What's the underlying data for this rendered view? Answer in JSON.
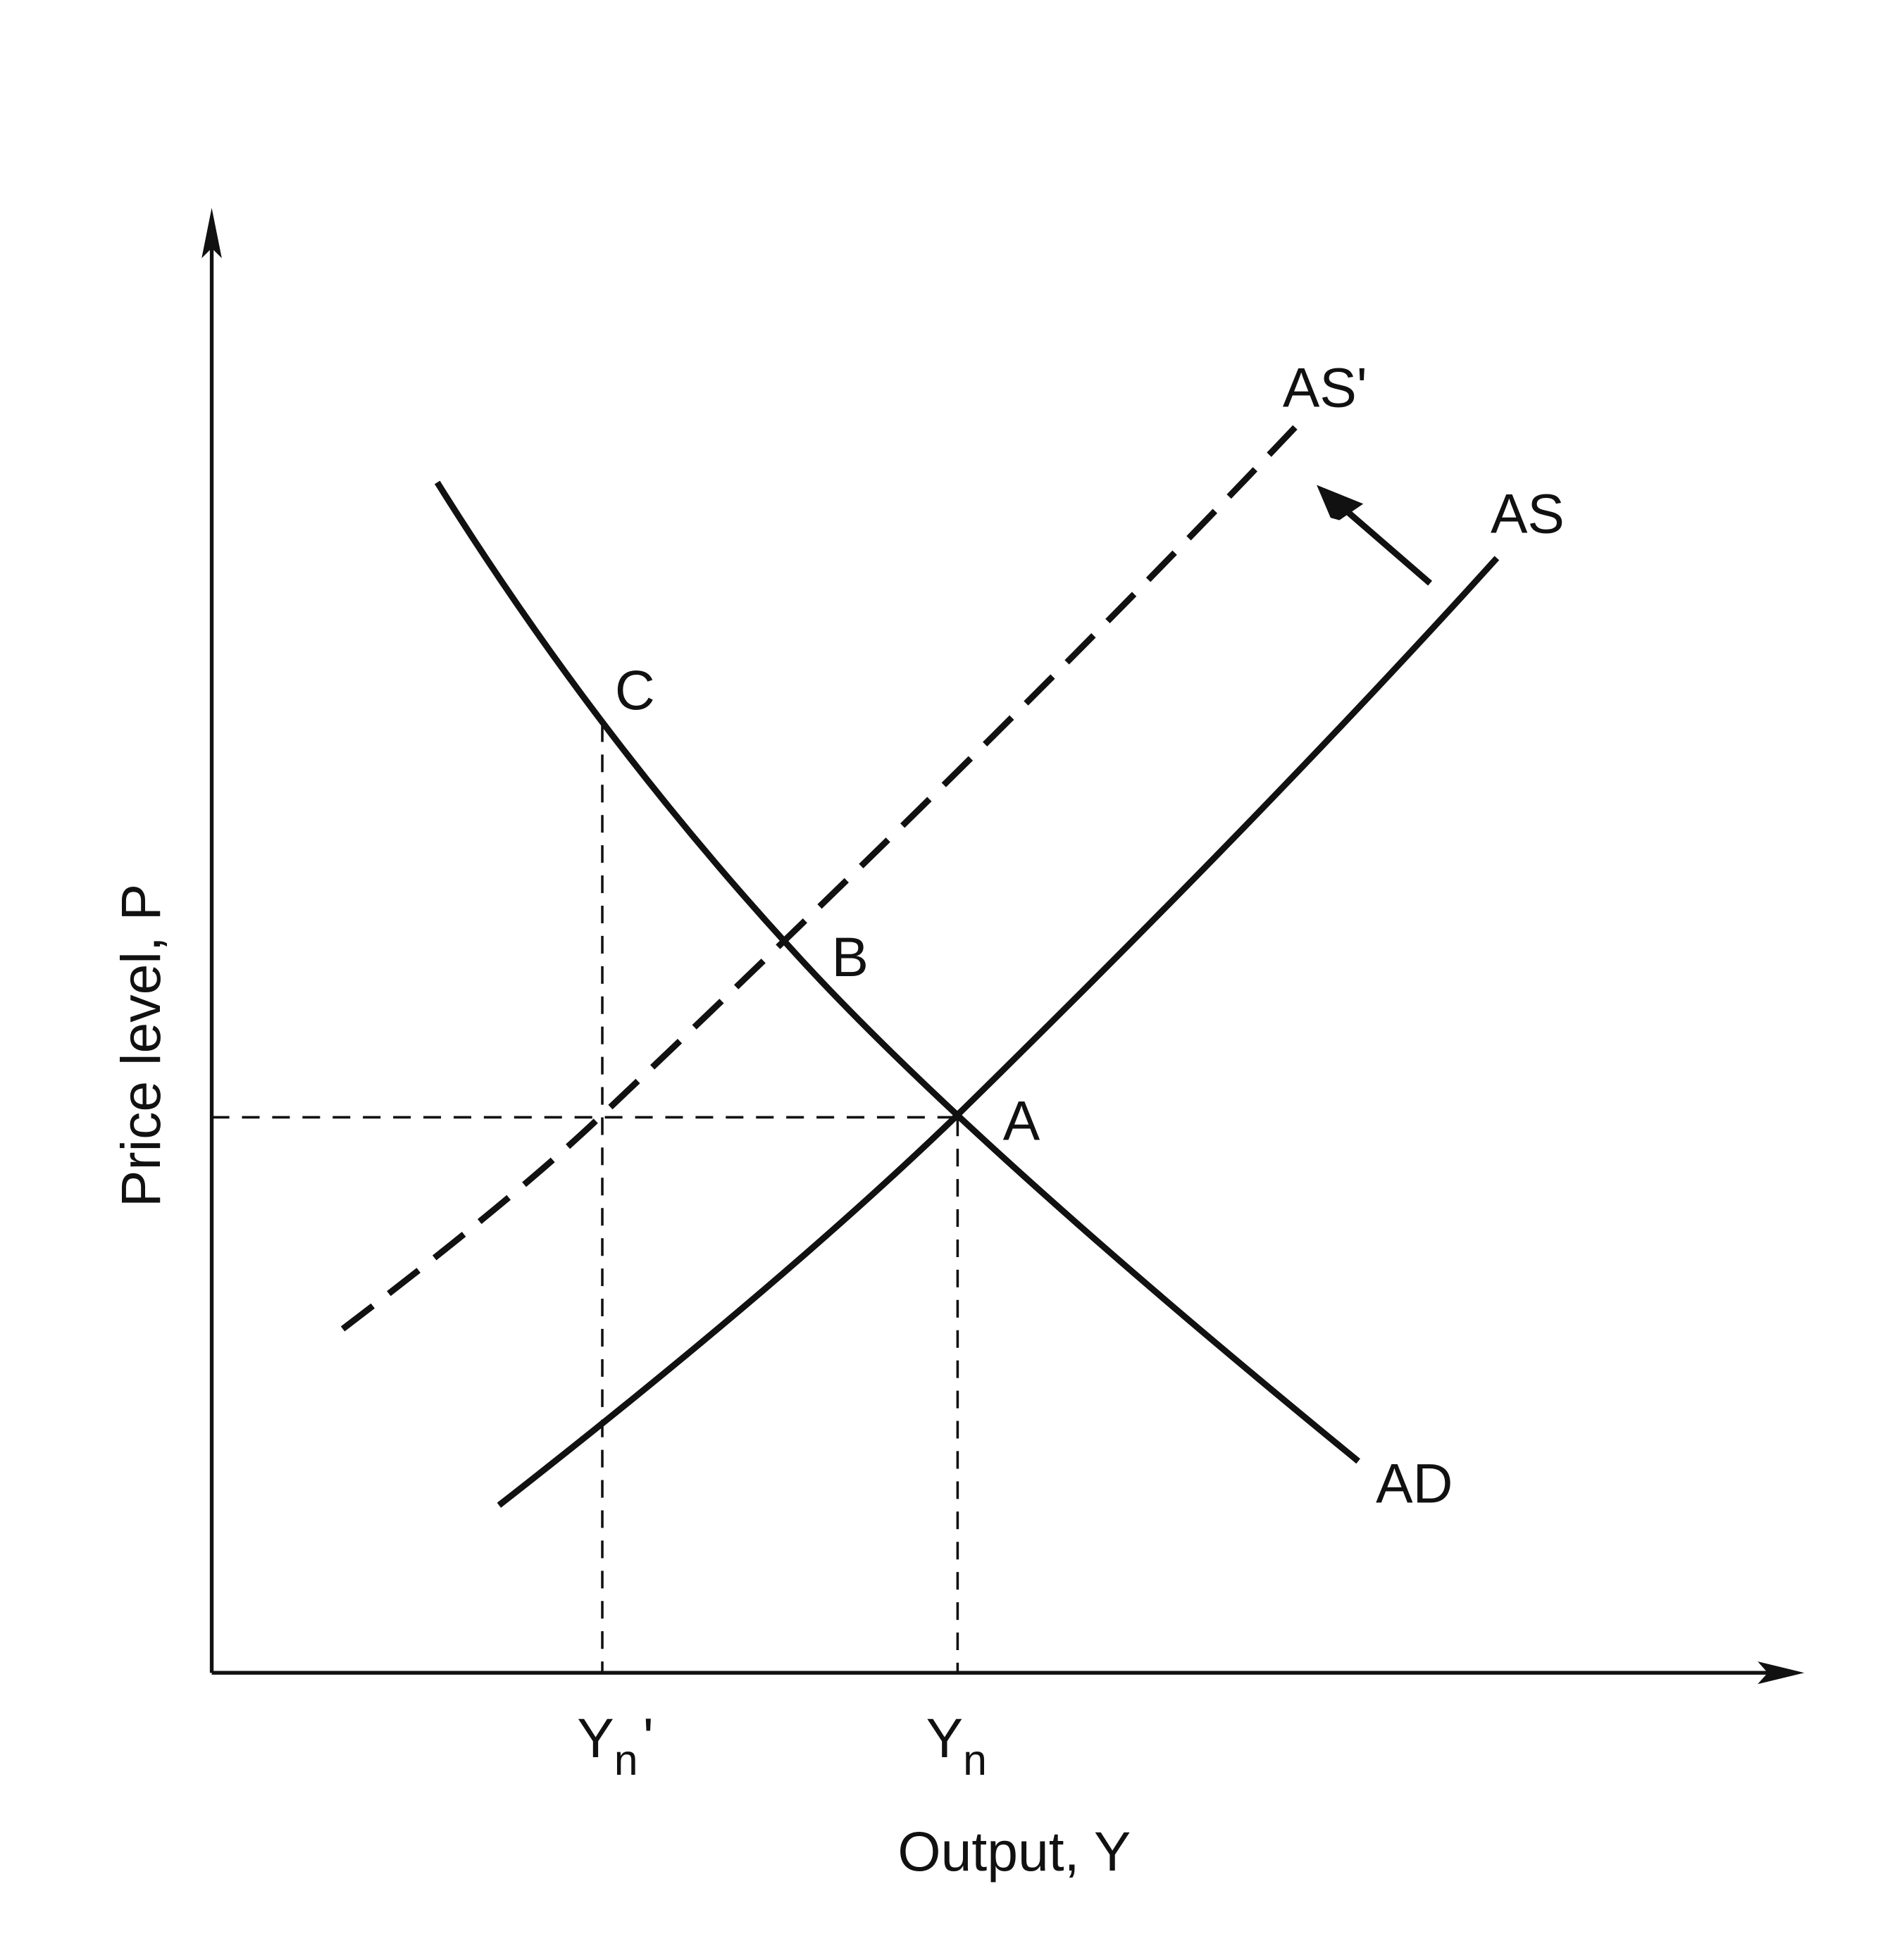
{
  "axes": {
    "x_label": "Output, Y",
    "y_label": "Price level, P"
  },
  "curves": {
    "as_shifted": "AS'",
    "as": "AS",
    "ad": "AD"
  },
  "points": {
    "a": "A",
    "b": "B",
    "c": "C"
  },
  "x_ticks": [
    {
      "main": "Y",
      "sub": "n",
      "suffix": "'"
    },
    {
      "main": "Y",
      "sub": "n"
    }
  ]
}
